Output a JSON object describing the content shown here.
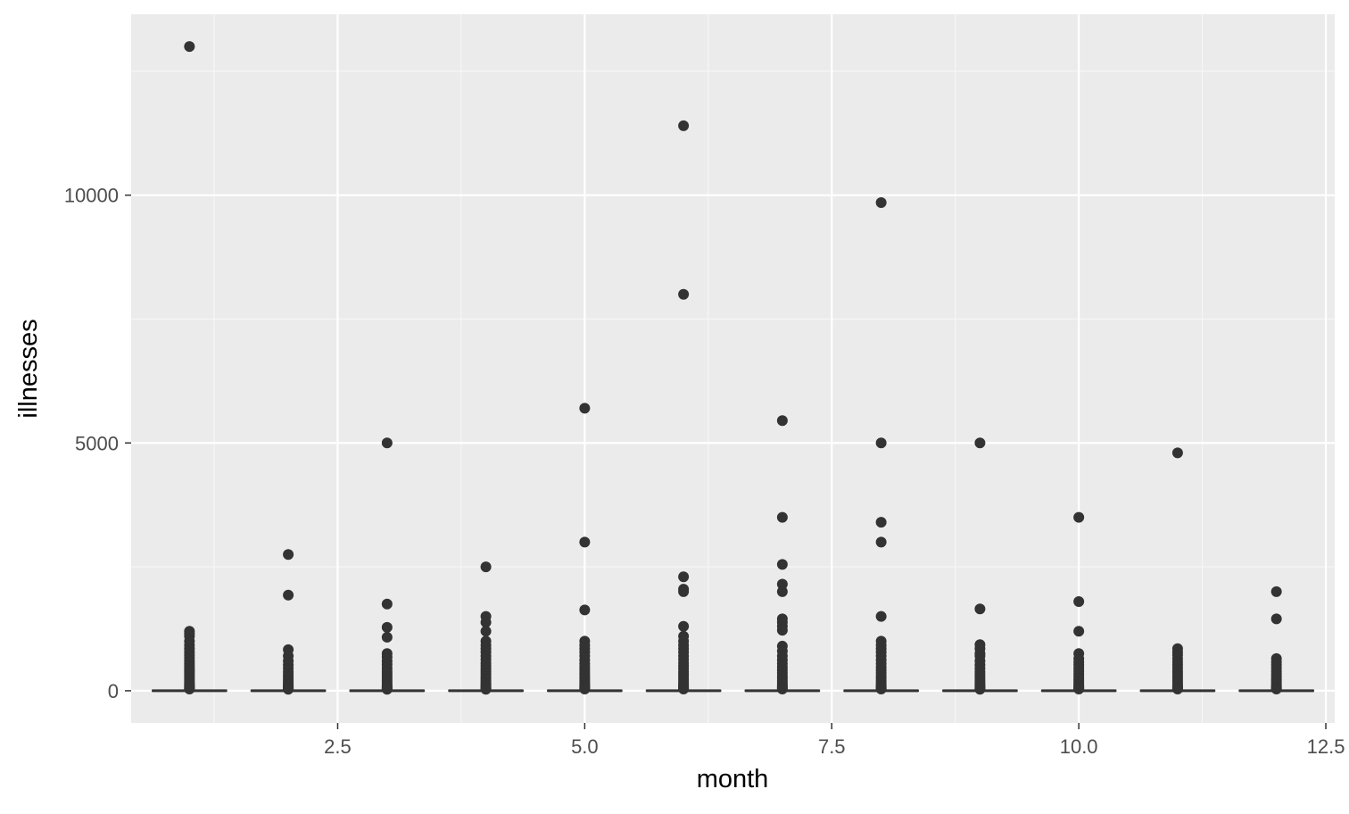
{
  "chart_data": {
    "type": "boxplot",
    "title": "",
    "xlabel": "month",
    "ylabel": "illnesses",
    "xlim": [
      0.41,
      12.59
    ],
    "ylim": [
      -650,
      13650
    ],
    "x_ticks": [
      2.5,
      5.0,
      7.5,
      10.0,
      12.5
    ],
    "x_tick_labels": [
      "2.5",
      "5.0",
      "7.5",
      "10.0",
      "12.5"
    ],
    "y_ticks": [
      0,
      5000,
      10000
    ],
    "y_tick_labels": [
      "0",
      "5000",
      "10000"
    ],
    "grid": true,
    "legend": "none",
    "box_width": 0.75,
    "colors": {
      "panel_background": "#ebebeb",
      "grid_major": "#ffffff",
      "grid_minor": "#f7f7f7",
      "mark": "#333333",
      "tick_text": "#4d4d4d",
      "axis_title": "#000000"
    },
    "boxes": [
      {
        "month": 1,
        "q1": 0,
        "median": 0,
        "q3": 10,
        "lower_whisker": 0,
        "upper_whisker": 25,
        "outliers": [
          13000,
          1200,
          1150,
          1100,
          1000,
          920,
          850,
          780,
          720,
          660,
          600,
          550,
          500,
          460,
          420,
          380,
          340,
          300,
          260,
          220,
          180,
          150,
          120,
          100,
          80,
          60,
          45,
          35
        ]
      },
      {
        "month": 2,
        "q1": 0,
        "median": 0,
        "q3": 10,
        "lower_whisker": 0,
        "upper_whisker": 25,
        "outliers": [
          2750,
          1930,
          830,
          700,
          600,
          520,
          450,
          380,
          320,
          270,
          220,
          180,
          140,
          110,
          85,
          65,
          50,
          40,
          30
        ]
      },
      {
        "month": 3,
        "q1": 0,
        "median": 0,
        "q3": 10,
        "lower_whisker": 0,
        "upper_whisker": 25,
        "outliers": [
          5000,
          1750,
          1280,
          1080,
          750,
          680,
          600,
          530,
          460,
          400,
          350,
          300,
          250,
          200,
          160,
          120,
          90,
          70,
          55,
          40,
          30
        ]
      },
      {
        "month": 4,
        "q1": 0,
        "median": 0,
        "q3": 10,
        "lower_whisker": 0,
        "upper_whisker": 25,
        "outliers": [
          2500,
          1500,
          1380,
          1200,
          1000,
          920,
          850,
          780,
          700,
          630,
          560,
          500,
          440,
          390,
          340,
          290,
          250,
          210,
          170,
          140,
          110,
          85,
          65,
          50,
          40,
          30
        ]
      },
      {
        "month": 5,
        "q1": 0,
        "median": 0,
        "q3": 10,
        "lower_whisker": 0,
        "upper_whisker": 25,
        "outliers": [
          5700,
          3000,
          1630,
          1000,
          920,
          850,
          780,
          700,
          620,
          550,
          490,
          430,
          380,
          330,
          280,
          240,
          200,
          160,
          130,
          100,
          80,
          60,
          45,
          35
        ]
      },
      {
        "month": 6,
        "q1": 0,
        "median": 0,
        "q3": 10,
        "lower_whisker": 0,
        "upper_whisker": 25,
        "outliers": [
          11400,
          8000,
          2300,
          2050,
          2000,
          1300,
          1100,
          1000,
          920,
          850,
          780,
          700,
          630,
          560,
          500,
          440,
          380,
          330,
          280,
          230,
          190,
          150,
          120,
          90,
          70,
          50,
          35
        ]
      },
      {
        "month": 7,
        "q1": 0,
        "median": 0,
        "q3": 10,
        "lower_whisker": 0,
        "upper_whisker": 25,
        "outliers": [
          5450,
          3500,
          2550,
          2150,
          2000,
          1450,
          1380,
          1300,
          1220,
          900,
          800,
          700,
          620,
          550,
          480,
          420,
          360,
          300,
          250,
          200,
          160,
          120,
          90,
          70,
          50,
          35
        ]
      },
      {
        "month": 8,
        "q1": 0,
        "median": 0,
        "q3": 10,
        "lower_whisker": 0,
        "upper_whisker": 25,
        "outliers": [
          9850,
          5000,
          3400,
          3000,
          1500,
          1000,
          920,
          850,
          780,
          700,
          620,
          550,
          480,
          420,
          360,
          300,
          250,
          200,
          160,
          120,
          90,
          70,
          50,
          35
        ]
      },
      {
        "month": 9,
        "q1": 0,
        "median": 0,
        "q3": 10,
        "lower_whisker": 0,
        "upper_whisker": 25,
        "outliers": [
          5000,
          1650,
          930,
          850,
          750,
          700,
          600,
          520,
          450,
          380,
          320,
          260,
          210,
          170,
          130,
          100,
          75,
          55,
          40,
          30
        ]
      },
      {
        "month": 10,
        "q1": 0,
        "median": 0,
        "q3": 10,
        "lower_whisker": 0,
        "upper_whisker": 25,
        "outliers": [
          3500,
          1800,
          1200,
          750,
          650,
          580,
          520,
          460,
          400,
          340,
          290,
          240,
          200,
          160,
          120,
          90,
          70,
          50,
          35
        ]
      },
      {
        "month": 11,
        "q1": 0,
        "median": 0,
        "q3": 10,
        "lower_whisker": 0,
        "upper_whisker": 25,
        "outliers": [
          4800,
          850,
          780,
          720,
          650,
          580,
          520,
          460,
          400,
          350,
          300,
          250,
          200,
          160,
          120,
          90,
          70,
          50,
          35
        ]
      },
      {
        "month": 12,
        "q1": 0,
        "median": 0,
        "q3": 10,
        "lower_whisker": 0,
        "upper_whisker": 25,
        "outliers": [
          2000,
          1450,
          650,
          580,
          520,
          460,
          400,
          340,
          290,
          240,
          200,
          160,
          120,
          90,
          70,
          50,
          35
        ]
      }
    ]
  }
}
